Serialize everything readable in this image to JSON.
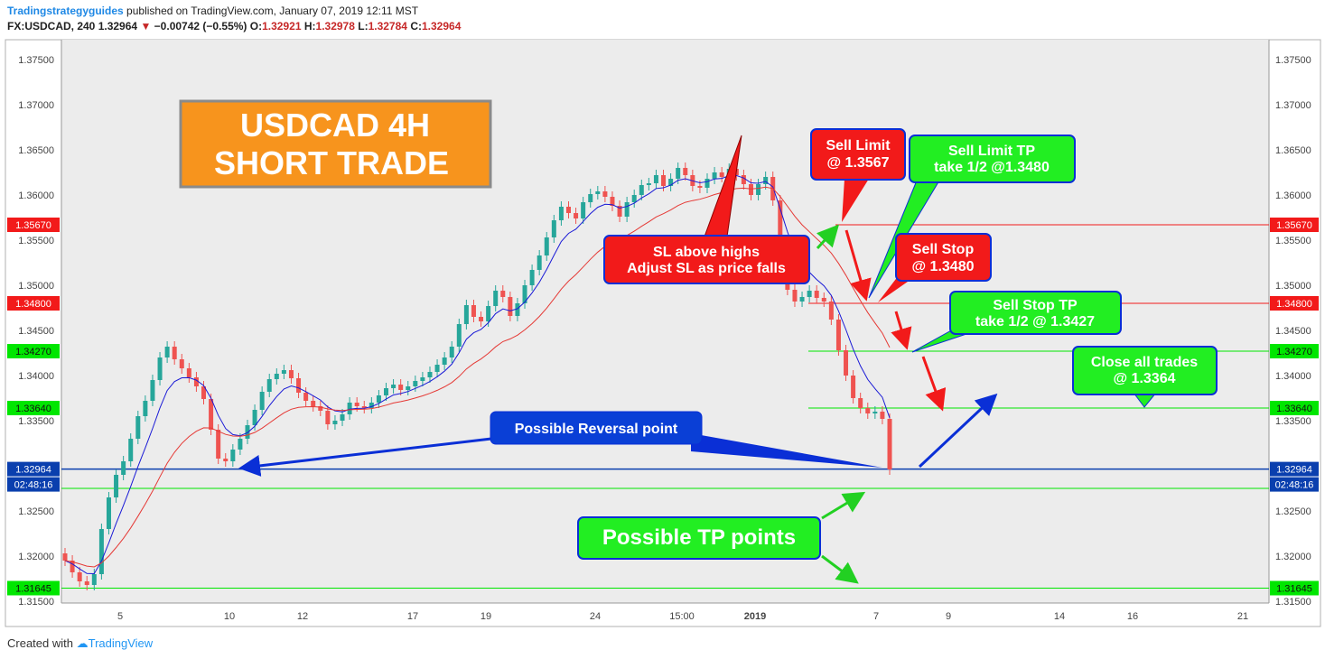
{
  "header": {
    "author": "Tradingstrategyguides",
    "published": "published on TradingView.com, January 07, 2019 12:11 MST",
    "symbol": "FX:USDCAD, 240",
    "last": "1.32964",
    "arrow": "▼",
    "change": "−0.00742 (−0.55%)",
    "o_label": "O:",
    "o": "1.32921",
    "h_label": "H:",
    "h": "1.32978",
    "l_label": "L:",
    "l": "1.32784",
    "c_label": "C:",
    "c": "1.32964"
  },
  "footer": {
    "created_with": "Created with",
    "brand": "TradingView"
  },
  "colors": {
    "up": "#26a69a",
    "down": "#ef5350",
    "ema_fast": "#1a1ad6",
    "ema_slow": "#e53935",
    "tag_red": "#f21a1a",
    "tag_green": "#00e600",
    "tag_blue": "#0a3fae"
  },
  "chart_data": {
    "type": "candlestick",
    "ylim": [
      1.315,
      1.378
    ],
    "y_ticks": [
      "1.31500",
      "1.32000",
      "1.32500",
      "1.33000",
      "1.33500",
      "1.34000",
      "1.34500",
      "1.35000",
      "1.35500",
      "1.36000",
      "1.36500",
      "1.37000",
      "1.37500"
    ],
    "x_ticks": [
      "5",
      "10",
      "12",
      "17",
      "19",
      "24",
      "15:00",
      "2019",
      "7",
      "9",
      "14",
      "16",
      "21"
    ],
    "price_tags": [
      {
        "label": "1.35670",
        "value": 1.3567,
        "color": "red"
      },
      {
        "label": "1.34800",
        "value": 1.348,
        "color": "red"
      },
      {
        "label": "1.34270",
        "value": 1.3427,
        "color": "green"
      },
      {
        "label": "1.33640",
        "value": 1.3364,
        "color": "green"
      },
      {
        "label": "1.32964",
        "value": 1.32964,
        "color": "blue"
      },
      {
        "label": "1.31645",
        "value": 1.31645,
        "color": "green"
      }
    ],
    "countdown": "02:48:16",
    "closes": [
      1.3195,
      1.3182,
      1.3172,
      1.3168,
      1.318,
      1.323,
      1.3265,
      1.329,
      1.3305,
      1.333,
      1.3355,
      1.3372,
      1.3395,
      1.342,
      1.3432,
      1.3418,
      1.3408,
      1.3398,
      1.3388,
      1.3374,
      1.334,
      1.3308,
      1.3305,
      1.3318,
      1.333,
      1.3345,
      1.3362,
      1.3382,
      1.3396,
      1.3402,
      1.3406,
      1.3397,
      1.3381,
      1.3372,
      1.3366,
      1.3361,
      1.3346,
      1.335,
      1.3357,
      1.337,
      1.3366,
      1.3364,
      1.337,
      1.3378,
      1.3386,
      1.339,
      1.3384,
      1.3388,
      1.3394,
      1.3398,
      1.3404,
      1.3412,
      1.342,
      1.3432,
      1.3457,
      1.3478,
      1.3465,
      1.346,
      1.3477,
      1.3494,
      1.3487,
      1.3466,
      1.348,
      1.35,
      1.3517,
      1.3533,
      1.3553,
      1.3572,
      1.3587,
      1.358,
      1.3574,
      1.3592,
      1.3601,
      1.3604,
      1.3598,
      1.3588,
      1.3576,
      1.3592,
      1.36,
      1.3611,
      1.3613,
      1.3622,
      1.361,
      1.3618,
      1.363,
      1.3622,
      1.361,
      1.3608,
      1.3618,
      1.3625,
      1.362,
      1.3629,
      1.3622,
      1.3612,
      1.36,
      1.3612,
      1.362,
      1.3594,
      1.3524,
      1.3495,
      1.3482,
      1.3487,
      1.3494,
      1.3486,
      1.3482,
      1.3462,
      1.3428,
      1.34,
      1.3375,
      1.3364,
      1.3358,
      1.336,
      1.3352,
      1.3296
    ]
  },
  "annotations": {
    "title_line1": "USDCAD 4H",
    "title_line2": "SHORT TRADE",
    "sl_line1": "SL above highs",
    "sl_line2": "Adjust SL as price falls",
    "sell_limit_line1": "Sell Limit",
    "sell_limit_line2": "@ 1.3567",
    "sell_limit_tp_line1": "Sell Limit TP",
    "sell_limit_tp_line2": "take 1/2 @1.3480",
    "sell_stop_line1": "Sell Stop",
    "sell_stop_line2": "@ 1.3480",
    "sell_stop_tp_line1": "Sell Stop TP",
    "sell_stop_tp_line2": "take 1/2 @ 1.3427",
    "close_all_line1": "Close all trades",
    "close_all_line2": "@ 1.3364",
    "reversal": "Possible Reversal point",
    "tp_points": "Possible TP points"
  }
}
